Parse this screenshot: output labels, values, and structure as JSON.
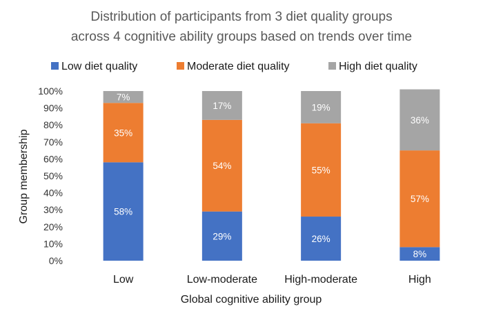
{
  "chart_data": {
    "type": "bar",
    "stacked": true,
    "percent": true,
    "title": "Distribution of participants from 3 diet quality groups",
    "subtitle": "across 4 cognitive ability groups based on trends over time",
    "xlabel": "Global cognitive ability group",
    "ylabel": "Group membership",
    "ylim": [
      0,
      100
    ],
    "yticks": [
      "0%",
      "10%",
      "20%",
      "30%",
      "40%",
      "50%",
      "60%",
      "70%",
      "80%",
      "90%",
      "100%"
    ],
    "categories": [
      "Low",
      "Low-moderate",
      "High-moderate",
      "High"
    ],
    "legend_position": "top",
    "grid": false,
    "series": [
      {
        "name": "Low diet quality",
        "color": "#4472C4",
        "values": [
          58,
          29,
          26,
          8
        ],
        "labels": [
          "58%",
          "29%",
          "26%",
          "8%"
        ]
      },
      {
        "name": "Moderate diet quality",
        "color": "#ED7D31",
        "values": [
          35,
          54,
          55,
          57
        ],
        "labels": [
          "35%",
          "54%",
          "55%",
          "57%"
        ]
      },
      {
        "name": "High diet quality",
        "color": "#A5A5A5",
        "values": [
          7,
          17,
          19,
          36
        ],
        "labels": [
          "7%",
          "17%",
          "19%",
          "36%"
        ]
      }
    ]
  }
}
